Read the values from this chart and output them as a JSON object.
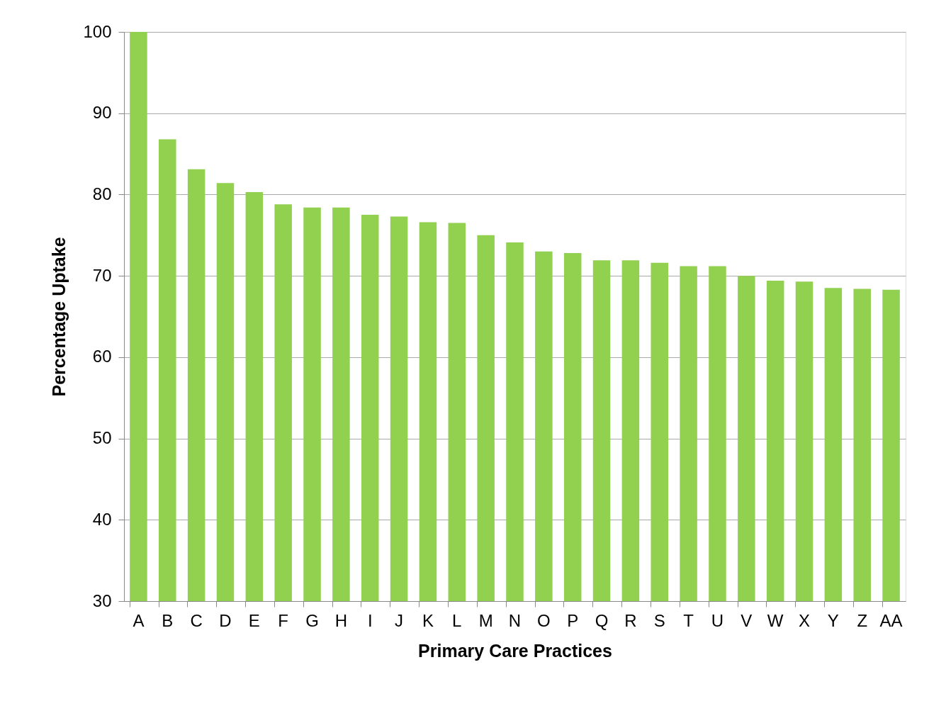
{
  "chart_data": {
    "type": "bar",
    "xlabel": "Primary Care Practices",
    "ylabel": "Percentage Uptake",
    "categories": [
      "A",
      "B",
      "C",
      "D",
      "E",
      "F",
      "G",
      "H",
      "I",
      "J",
      "K",
      "L",
      "M",
      "N",
      "O",
      "P",
      "Q",
      "R",
      "S",
      "T",
      "U",
      "V",
      "W",
      "X",
      "Y",
      "Z",
      "AA"
    ],
    "values": [
      100,
      86.8,
      83.1,
      81.4,
      80.3,
      78.8,
      78.4,
      78.4,
      77.5,
      77.3,
      76.6,
      76.5,
      75.0,
      74.1,
      73.0,
      72.8,
      71.9,
      71.9,
      71.6,
      71.2,
      71.2,
      70.0,
      69.4,
      69.3,
      68.5,
      68.4,
      68.3
    ],
    "color": "#92d050",
    "ylim": [
      30,
      100
    ],
    "yticks": [
      30,
      40,
      50,
      60,
      70,
      80,
      90,
      100
    ],
    "grid": "y"
  }
}
